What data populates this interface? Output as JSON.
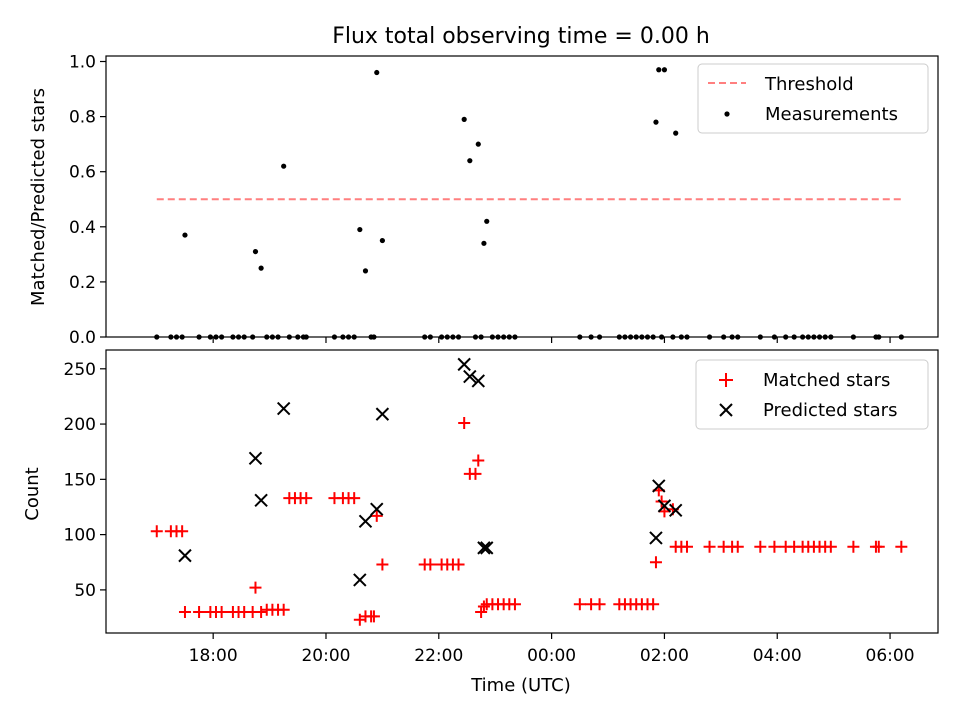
{
  "chart_data": [
    {
      "type": "scatter",
      "title": "Flux total observing time = 0.00 h",
      "xlabel": "",
      "ylabel": "Matched/Predicted stars",
      "xunit": "hours after 00:00 on the first night; values over 24 are after midnight",
      "xlim": [
        16.1,
        30.85
      ],
      "ylim": [
        0,
        1.02
      ],
      "yticks": [
        "0.0",
        "0.2",
        "0.4",
        "0.6",
        "0.8",
        "1.0"
      ],
      "xticks_hours": [
        18,
        20,
        22,
        24,
        26,
        28,
        30
      ],
      "legend": [
        "Threshold",
        "Measurements"
      ],
      "legend_position": "upper right",
      "threshold": {
        "name": "Threshold",
        "value": 0.5,
        "x_range": [
          17.0,
          30.2
        ],
        "color": "#ff7f7f",
        "style": "dashed"
      },
      "series": [
        {
          "name": "Measurements",
          "color": "#000000",
          "points": [
            [
              17.0,
              0
            ],
            [
              17.25,
              0
            ],
            [
              17.35,
              0
            ],
            [
              17.45,
              0
            ],
            [
              17.5,
              0.37
            ],
            [
              17.75,
              0
            ],
            [
              17.95,
              0
            ],
            [
              18.05,
              0
            ],
            [
              18.15,
              0
            ],
            [
              18.35,
              0
            ],
            [
              18.45,
              0
            ],
            [
              18.55,
              0
            ],
            [
              18.7,
              0
            ],
            [
              18.75,
              0.31
            ],
            [
              18.85,
              0.25
            ],
            [
              18.95,
              0
            ],
            [
              19.05,
              0
            ],
            [
              19.15,
              0
            ],
            [
              19.25,
              0.62
            ],
            [
              19.35,
              0
            ],
            [
              19.5,
              0
            ],
            [
              19.6,
              0
            ],
            [
              19.65,
              0
            ],
            [
              20.15,
              0
            ],
            [
              20.3,
              0
            ],
            [
              20.4,
              0
            ],
            [
              20.5,
              0
            ],
            [
              20.6,
              0.39
            ],
            [
              20.7,
              0.24
            ],
            [
              20.8,
              0
            ],
            [
              20.85,
              0
            ],
            [
              20.9,
              0.96
            ],
            [
              21.0,
              0.35
            ],
            [
              21.75,
              0
            ],
            [
              21.85,
              0
            ],
            [
              22.05,
              0
            ],
            [
              22.15,
              0
            ],
            [
              22.25,
              0
            ],
            [
              22.35,
              0
            ],
            [
              22.45,
              0.79
            ],
            [
              22.55,
              0.64
            ],
            [
              22.65,
              0
            ],
            [
              22.7,
              0.7
            ],
            [
              22.75,
              0
            ],
            [
              22.8,
              0.34
            ],
            [
              22.85,
              0.42
            ],
            [
              22.95,
              0
            ],
            [
              23.05,
              0
            ],
            [
              23.15,
              0
            ],
            [
              23.25,
              0
            ],
            [
              23.35,
              0
            ],
            [
              24.5,
              0
            ],
            [
              24.7,
              0
            ],
            [
              24.85,
              0
            ],
            [
              25.2,
              0
            ],
            [
              25.3,
              0
            ],
            [
              25.4,
              0
            ],
            [
              25.5,
              0
            ],
            [
              25.6,
              0
            ],
            [
              25.7,
              0
            ],
            [
              25.8,
              0
            ],
            [
              25.85,
              0.78
            ],
            [
              25.9,
              0.97
            ],
            [
              25.95,
              0
            ],
            [
              26.0,
              0.97
            ],
            [
              26.15,
              0
            ],
            [
              26.2,
              0.74
            ],
            [
              26.3,
              0
            ],
            [
              26.4,
              0
            ],
            [
              26.8,
              0
            ],
            [
              27.05,
              0
            ],
            [
              27.2,
              0
            ],
            [
              27.3,
              0
            ],
            [
              27.7,
              0
            ],
            [
              27.95,
              0
            ],
            [
              28.15,
              0
            ],
            [
              28.3,
              0
            ],
            [
              28.45,
              0
            ],
            [
              28.55,
              0
            ],
            [
              28.65,
              0
            ],
            [
              28.75,
              0
            ],
            [
              28.85,
              0
            ],
            [
              28.95,
              0
            ],
            [
              29.35,
              0
            ],
            [
              29.75,
              0
            ],
            [
              29.8,
              0
            ],
            [
              30.2,
              0
            ]
          ]
        }
      ]
    },
    {
      "type": "scatter",
      "title": "",
      "xlabel": "Time (UTC)",
      "ylabel": "Count",
      "xunit": "hours after 00:00 on the first night; values over 24 are after midnight",
      "xlim": [
        16.1,
        30.85
      ],
      "ylim": [
        11,
        267
      ],
      "yticks": [
        "50",
        "100",
        "150",
        "200",
        "250"
      ],
      "xticks": [
        "18:00",
        "20:00",
        "22:00",
        "00:00",
        "02:00",
        "04:00",
        "06:00"
      ],
      "xticks_hours": [
        18,
        20,
        22,
        24,
        26,
        28,
        30
      ],
      "legend": [
        "Matched stars",
        "Predicted stars"
      ],
      "legend_position": "upper right",
      "series": [
        {
          "name": "Matched stars",
          "marker": "plus",
          "color": "#ff0000",
          "points": [
            [
              17.0,
              103
            ],
            [
              17.25,
              103
            ],
            [
              17.35,
              103
            ],
            [
              17.45,
              103
            ],
            [
              17.5,
              30
            ],
            [
              17.75,
              30
            ],
            [
              17.95,
              30
            ],
            [
              18.05,
              30
            ],
            [
              18.15,
              30
            ],
            [
              18.35,
              30
            ],
            [
              18.45,
              30
            ],
            [
              18.55,
              30
            ],
            [
              18.7,
              30
            ],
            [
              18.75,
              52
            ],
            [
              18.85,
              30
            ],
            [
              18.95,
              32
            ],
            [
              19.05,
              32
            ],
            [
              19.15,
              32
            ],
            [
              19.25,
              32
            ],
            [
              19.35,
              133
            ],
            [
              19.45,
              133
            ],
            [
              19.55,
              133
            ],
            [
              19.65,
              133
            ],
            [
              20.15,
              133
            ],
            [
              20.3,
              133
            ],
            [
              20.4,
              133
            ],
            [
              20.5,
              133
            ],
            [
              20.6,
              23
            ],
            [
              20.7,
              26
            ],
            [
              20.8,
              26
            ],
            [
              20.85,
              26
            ],
            [
              20.9,
              117
            ],
            [
              21.0,
              73
            ],
            [
              21.75,
              73
            ],
            [
              21.85,
              73
            ],
            [
              22.05,
              73
            ],
            [
              22.15,
              73
            ],
            [
              22.25,
              73
            ],
            [
              22.35,
              73
            ],
            [
              22.45,
              201
            ],
            [
              22.55,
              155
            ],
            [
              22.65,
              155
            ],
            [
              22.7,
              167
            ],
            [
              22.75,
              30
            ],
            [
              22.8,
              35
            ],
            [
              22.85,
              37
            ],
            [
              22.95,
              37
            ],
            [
              23.05,
              37
            ],
            [
              23.15,
              37
            ],
            [
              23.25,
              37
            ],
            [
              23.35,
              37
            ],
            [
              24.5,
              37
            ],
            [
              24.7,
              37
            ],
            [
              24.85,
              37
            ],
            [
              25.2,
              37
            ],
            [
              25.3,
              37
            ],
            [
              25.4,
              37
            ],
            [
              25.5,
              37
            ],
            [
              25.6,
              37
            ],
            [
              25.7,
              37
            ],
            [
              25.8,
              37
            ],
            [
              25.85,
              75
            ],
            [
              25.9,
              140
            ],
            [
              25.95,
              130
            ],
            [
              26.0,
              121
            ],
            [
              26.15,
              123
            ],
            [
              26.2,
              89
            ],
            [
              26.3,
              89
            ],
            [
              26.4,
              89
            ],
            [
              26.8,
              89
            ],
            [
              27.05,
              89
            ],
            [
              27.2,
              89
            ],
            [
              27.3,
              89
            ],
            [
              27.7,
              89
            ],
            [
              27.95,
              89
            ],
            [
              28.15,
              89
            ],
            [
              28.3,
              89
            ],
            [
              28.45,
              89
            ],
            [
              28.55,
              89
            ],
            [
              28.65,
              89
            ],
            [
              28.75,
              89
            ],
            [
              28.85,
              89
            ],
            [
              28.95,
              89
            ],
            [
              29.35,
              89
            ],
            [
              29.75,
              89
            ],
            [
              29.8,
              89
            ],
            [
              30.2,
              89
            ]
          ]
        },
        {
          "name": "Predicted stars",
          "marker": "x",
          "color": "#000000",
          "points": [
            [
              17.5,
              81
            ],
            [
              18.75,
              169
            ],
            [
              18.85,
              131
            ],
            [
              19.25,
              214
            ],
            [
              20.6,
              59
            ],
            [
              20.7,
              112
            ],
            [
              20.9,
              123
            ],
            [
              21.0,
              209
            ],
            [
              22.45,
              254
            ],
            [
              22.55,
              243
            ],
            [
              22.7,
              239
            ],
            [
              22.8,
              88
            ],
            [
              22.85,
              88
            ],
            [
              25.85,
              97
            ],
            [
              25.9,
              144
            ],
            [
              26.0,
              126
            ],
            [
              26.2,
              122
            ]
          ]
        }
      ]
    }
  ]
}
